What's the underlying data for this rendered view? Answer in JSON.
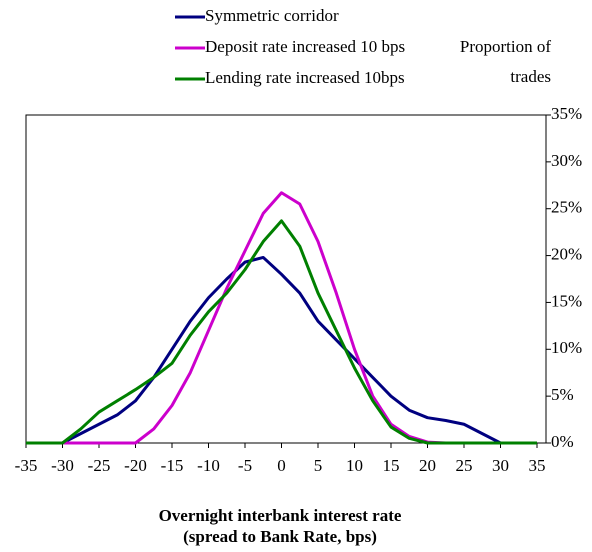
{
  "chart_data": {
    "type": "line",
    "xlabel": [
      "Overnight interbank interest rate",
      "(spread to Bank Rate, bps)"
    ],
    "ylabel": [
      "Proportion of",
      "trades"
    ],
    "x": [
      -35,
      -32.5,
      -30,
      -27.5,
      -25,
      -22.5,
      -20,
      -17.5,
      -15,
      -12.5,
      -10,
      -7.5,
      -5,
      -2.5,
      0,
      2.5,
      5,
      7.5,
      10,
      12.5,
      15,
      17.5,
      20,
      22.5,
      25,
      27.5,
      30,
      32.5,
      35
    ],
    "series": [
      {
        "name": "Symmetric corridor",
        "color": "#000080",
        "values": [
          0,
          0,
          0,
          1,
          2,
          3,
          4.5,
          7,
          10,
          13,
          15.5,
          17.5,
          19.3,
          19.8,
          18,
          16,
          13,
          11,
          9,
          7,
          5,
          3.5,
          2.7,
          2.4,
          2,
          1,
          0,
          0,
          0
        ]
      },
      {
        "name": "Deposit rate increased 10 bps",
        "color": "#cc00cc",
        "values": [
          0,
          0,
          0,
          0,
          0,
          0,
          0,
          1.5,
          4,
          7.5,
          12,
          16.5,
          20.5,
          24.5,
          26.7,
          25.5,
          21.5,
          16,
          10,
          5,
          2,
          0.7,
          0.1,
          0,
          0,
          0,
          0,
          0,
          0
        ]
      },
      {
        "name": "Lending rate increased 10bps",
        "color": "#008000",
        "values": [
          0,
          0,
          0,
          1.5,
          3.3,
          4.5,
          5.7,
          7,
          8.5,
          11.5,
          14,
          16,
          18.5,
          21.5,
          23.7,
          21,
          16,
          12,
          8,
          4.5,
          1.7,
          0.5,
          0,
          0,
          0,
          0,
          0,
          0,
          0
        ]
      }
    ],
    "xlim": [
      -35,
      35
    ],
    "xticks": [
      -35,
      -30,
      -25,
      -20,
      -15,
      -10,
      -5,
      0,
      5,
      10,
      15,
      20,
      25,
      30,
      35
    ],
    "ylim": [
      0,
      35
    ],
    "yticks": [
      {
        "value": 0,
        "label": "0%"
      },
      {
        "value": 5,
        "label": "5%"
      },
      {
        "value": 10,
        "label": "10%"
      },
      {
        "value": 15,
        "label": "15%"
      },
      {
        "value": 20,
        "label": "20%"
      },
      {
        "value": 25,
        "label": "25%"
      },
      {
        "value": 30,
        "label": "30%"
      },
      {
        "value": 35,
        "label": "35%"
      }
    ],
    "legend": "top-left"
  }
}
